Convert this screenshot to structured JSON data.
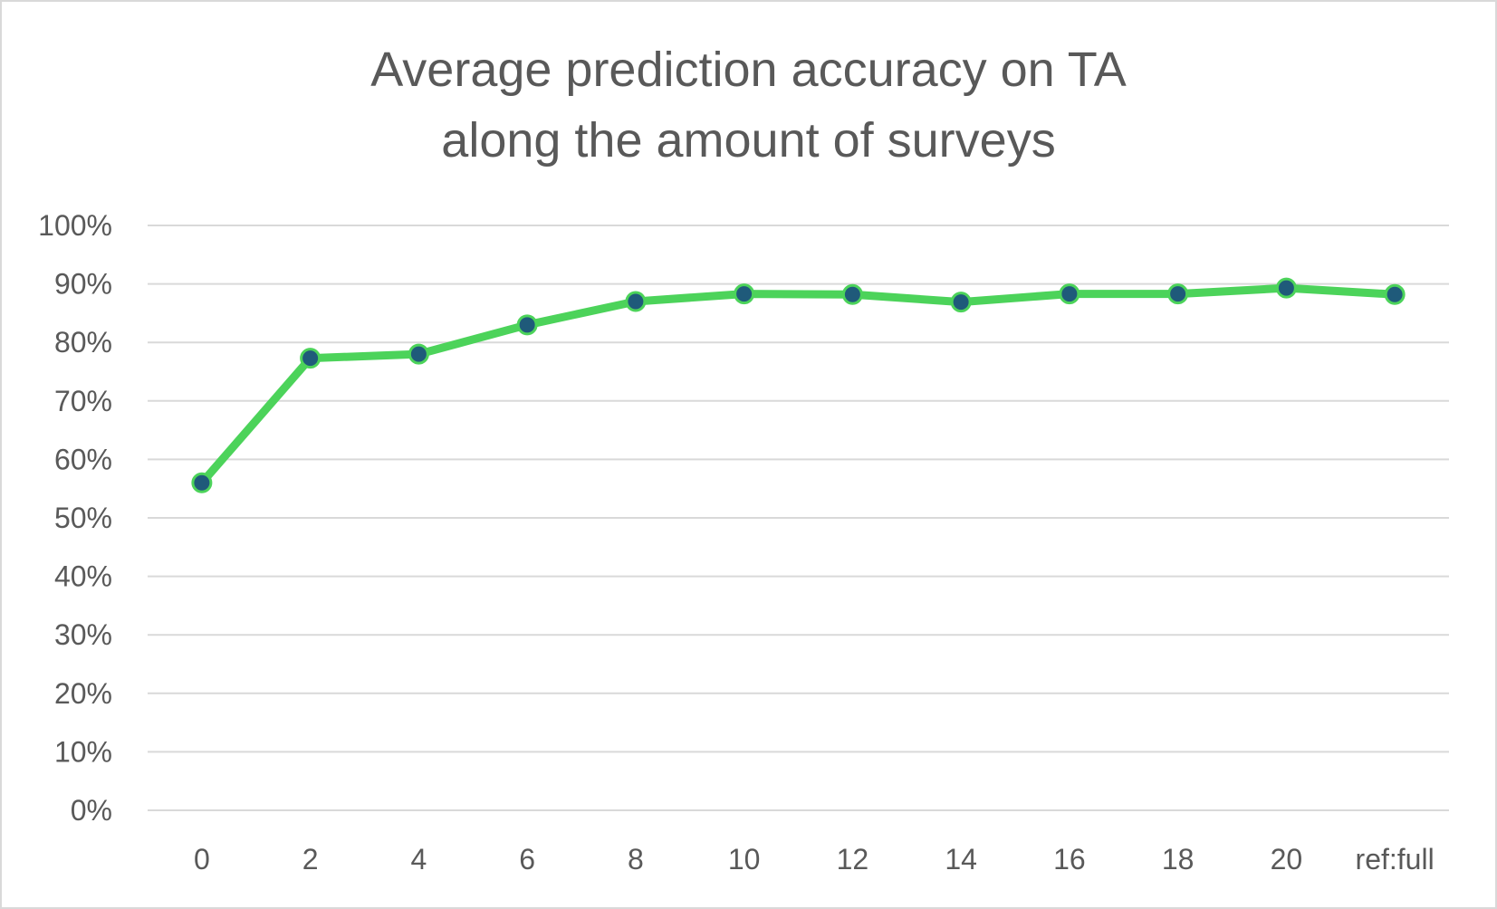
{
  "chart_data": {
    "type": "line",
    "title_lines": [
      "Average prediction accuracy on TA",
      "along the amount of surveys"
    ],
    "categories": [
      "0",
      "2",
      "4",
      "6",
      "8",
      "10",
      "12",
      "14",
      "16",
      "18",
      "20",
      "ref:full"
    ],
    "series": [
      {
        "values": [
          0.56,
          0.773,
          0.78,
          0.83,
          0.87,
          0.883,
          0.882,
          0.869,
          0.883,
          0.883,
          0.893,
          0.882
        ]
      }
    ],
    "y_ticks": [
      "0%",
      "10%",
      "20%",
      "30%",
      "40%",
      "50%",
      "60%",
      "70%",
      "80%",
      "90%",
      "100%"
    ],
    "ylim": [
      0,
      1
    ],
    "grid": "horizontal",
    "legend": "none",
    "colors": {
      "line": "#4cd35a",
      "marker_fill": "#1f5a7a",
      "marker_edge": "#4cd35a",
      "grid": "#d9d9d9",
      "text": "#595959"
    }
  }
}
